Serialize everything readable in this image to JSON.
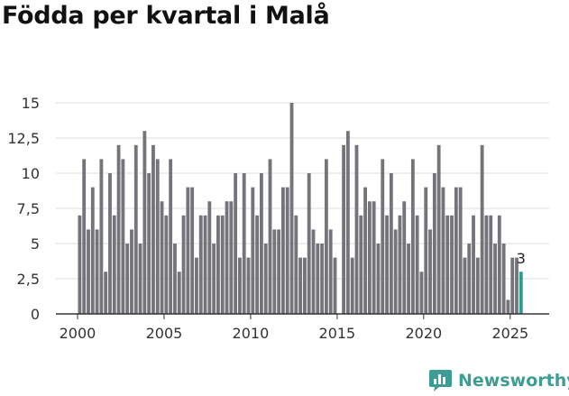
{
  "page": {
    "title": "Födda per kvartal i Malå"
  },
  "brand": {
    "name": "Newsworthy",
    "icon": "newsworthy-bar-chart-logo-icon"
  },
  "colors": {
    "bar": "#76747b",
    "highlight": "#2f9c93",
    "grid": "#dddddd",
    "axis": "#333333",
    "text": "#333333",
    "brand": "#3f9c93"
  },
  "chart_data": {
    "type": "bar",
    "title": "Födda per kvartal i Malå",
    "xlabel": "",
    "ylabel": "",
    "ylim": [
      0,
      15
    ],
    "yticks": [
      0,
      2.5,
      5,
      7.5,
      10,
      12.5,
      15
    ],
    "ytick_labels": [
      "0",
      "2,5",
      "5",
      "7,5",
      "10",
      "12,5",
      "15"
    ],
    "xlim": [
      1998.75,
      2027.25
    ],
    "xticks": [
      2000,
      2005,
      2010,
      2015,
      2020,
      2025
    ],
    "xtick_labels": [
      "2000",
      "2005",
      "2010",
      "2015",
      "2020",
      "2025"
    ],
    "grid": true,
    "start_year": 2000,
    "start_quarter": 1,
    "values": [
      7,
      11,
      6,
      9,
      6,
      11,
      3,
      10,
      7,
      12,
      11,
      5,
      6,
      12,
      5,
      13,
      10,
      12,
      11,
      8,
      7,
      11,
      5,
      3,
      7,
      9,
      9,
      4,
      7,
      7,
      8,
      5,
      7,
      7,
      8,
      8,
      10,
      4,
      10,
      4,
      9,
      7,
      10,
      5,
      11,
      6,
      6,
      9,
      9,
      15,
      7,
      4,
      4,
      10,
      6,
      5,
      5,
      11,
      6,
      4,
      0,
      12,
      13,
      4,
      12,
      7,
      9,
      8,
      8,
      5,
      11,
      7,
      10,
      6,
      7,
      8,
      5,
      11,
      7,
      3,
      9,
      6,
      10,
      12,
      9,
      7,
      7,
      9,
      9,
      4,
      5,
      7,
      4,
      12,
      7,
      7,
      5,
      7,
      5,
      1,
      4,
      4,
      3
    ],
    "highlight_last": true,
    "annotations": [
      {
        "text": "3",
        "target": "last"
      }
    ]
  }
}
